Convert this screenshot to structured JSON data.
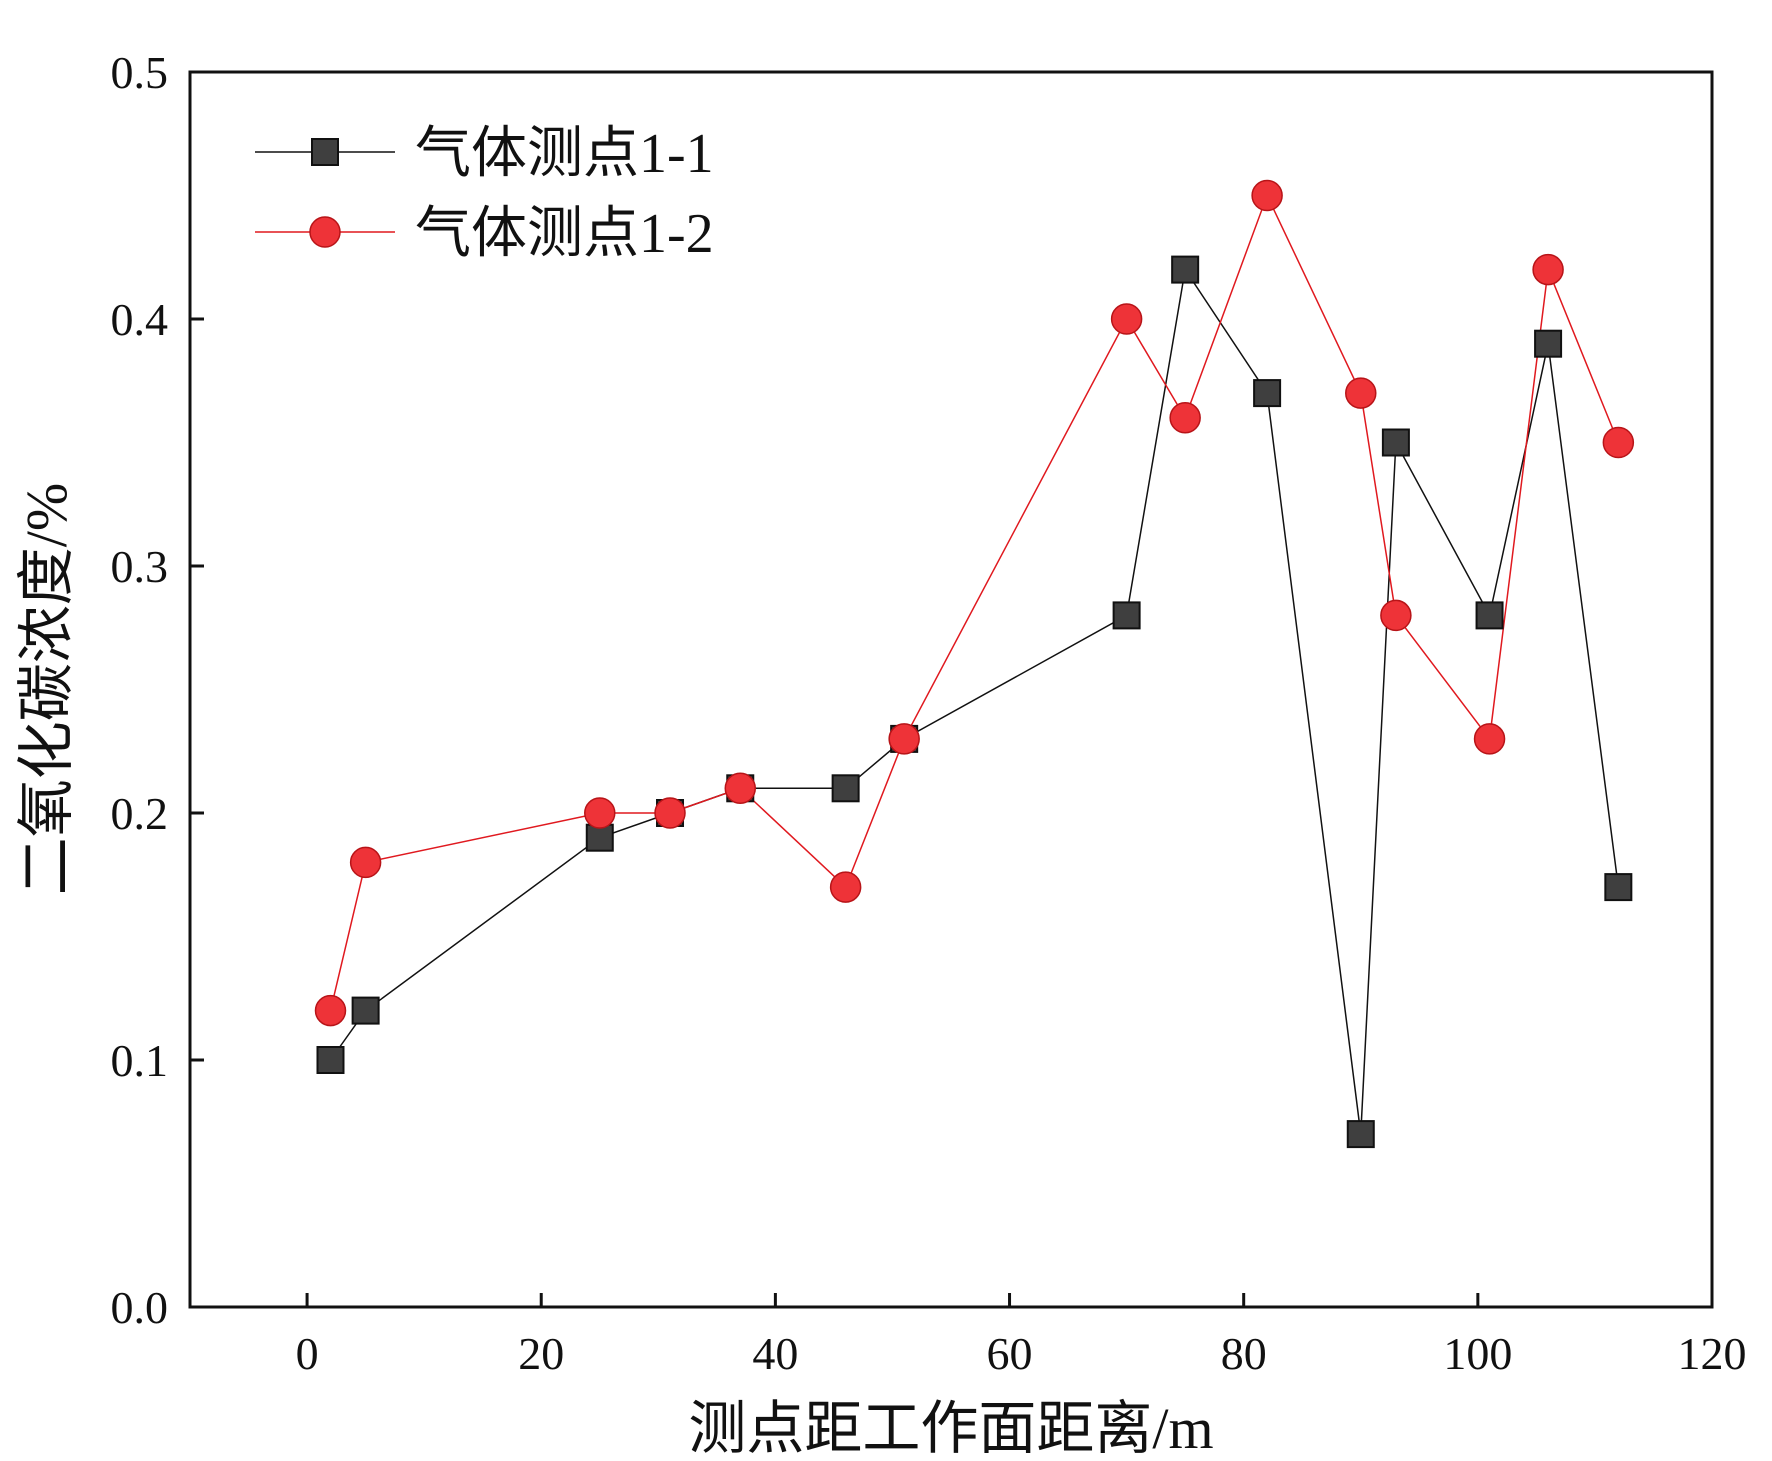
{
  "chart_data": {
    "type": "line",
    "title": "",
    "xlabel": "测点距工作面距离/m",
    "ylabel": "二氧化碳浓度/%",
    "xlim": [
      -10,
      120
    ],
    "ylim": [
      0.0,
      0.5
    ],
    "xticks": [
      "0",
      "20",
      "40",
      "60",
      "80",
      "100",
      "120"
    ],
    "yticks": [
      "0.0",
      "0.1",
      "0.2",
      "0.3",
      "0.4",
      "0.5"
    ],
    "grid": false,
    "legend_position": "top-left",
    "series": [
      {
        "name": "气体测点1-1",
        "marker": "square",
        "color": "#3f3f3f",
        "line_color": "#111111",
        "x": [
          2,
          5,
          25,
          31,
          37,
          46,
          51,
          70,
          75,
          82,
          90,
          93,
          101,
          106,
          112
        ],
        "y": [
          0.1,
          0.12,
          0.19,
          0.2,
          0.21,
          0.21,
          0.23,
          0.28,
          0.42,
          0.37,
          0.07,
          0.35,
          0.28,
          0.39,
          0.17
        ]
      },
      {
        "name": "气体测点1-2",
        "marker": "circle",
        "color": "#ee3338",
        "line_color": "#e0191f",
        "x": [
          2,
          5,
          25,
          31,
          37,
          46,
          51,
          70,
          75,
          82,
          90,
          93,
          101,
          106,
          112
        ],
        "y": [
          0.12,
          0.18,
          0.2,
          0.2,
          0.21,
          0.17,
          0.23,
          0.4,
          0.36,
          0.45,
          0.37,
          0.28,
          0.23,
          0.42,
          0.35
        ]
      }
    ]
  }
}
